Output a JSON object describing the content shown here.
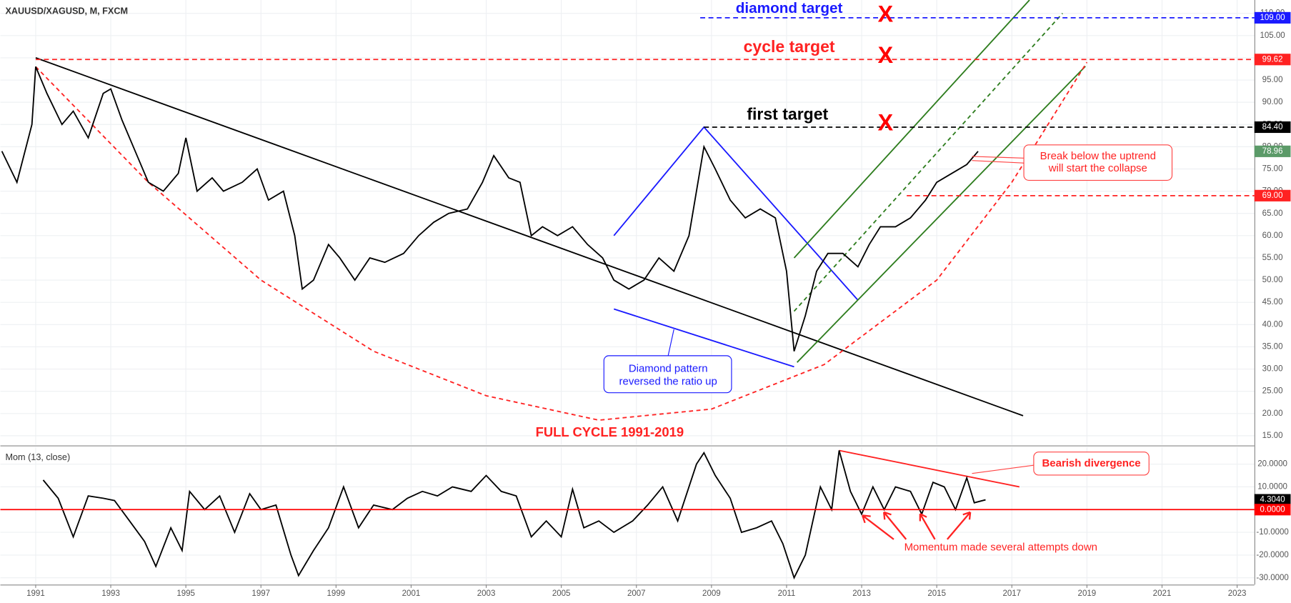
{
  "chart_data": [
    {
      "type": "line",
      "title": "XAUUSD/XAGUSD, M, FXCM",
      "color": "#000000",
      "x": [
        1990.1,
        1990.5,
        1990.9,
        1991.0,
        1991.3,
        1991.7,
        1992.0,
        1992.4,
        1992.8,
        1993.0,
        1993.3,
        1993.7,
        1994.0,
        1994.4,
        1994.8,
        1995.0,
        1995.3,
        1995.7,
        1996.0,
        1996.5,
        1996.9,
        1997.2,
        1997.6,
        1997.9,
        1998.1,
        1998.4,
        1998.8,
        1999.1,
        1999.5,
        1999.9,
        2000.3,
        2000.8,
        2001.2,
        2001.6,
        2002.0,
        2002.5,
        2002.9,
        2003.2,
        2003.6,
        2003.9,
        2004.2,
        2004.5,
        2004.9,
        2005.3,
        2005.7,
        2006.1,
        2006.4,
        2006.8,
        2007.2,
        2007.6,
        2008.0,
        2008.4,
        2008.8,
        2009.1,
        2009.5,
        2009.9,
        2010.3,
        2010.7,
        2011.0,
        2011.2,
        2011.5,
        2011.8,
        2012.1,
        2012.5,
        2012.9,
        2013.2,
        2013.5,
        2013.9,
        2014.3,
        2014.7,
        2015.0,
        2015.4,
        2015.8,
        2016.1
      ],
      "values": [
        79,
        72,
        85,
        98,
        92,
        85,
        88,
        82,
        92,
        93,
        86,
        78,
        72,
        70,
        74,
        82,
        70,
        73,
        70,
        72,
        75,
        68,
        70,
        60,
        48,
        50,
        58,
        55,
        50,
        55,
        54,
        56,
        60,
        63,
        65,
        66,
        72,
        78,
        73,
        72,
        60,
        62,
        60,
        62,
        58,
        55,
        50,
        48,
        50,
        55,
        52,
        60,
        80,
        75,
        68,
        64,
        66,
        64,
        52,
        34,
        42,
        52,
        56,
        56,
        53,
        58,
        62,
        62,
        64,
        68,
        72,
        74,
        76,
        78.96
      ],
      "xlim": [
        1990.06,
        2023.46
      ],
      "ylim": [
        13,
        113
      ],
      "yticks": [
        {
          "value": 15,
          "label": "15.00"
        },
        {
          "value": 20,
          "label": "20.00"
        },
        {
          "value": 25,
          "label": "25.00"
        },
        {
          "value": 30,
          "label": "30.00"
        },
        {
          "value": 35,
          "label": "35.00"
        },
        {
          "value": 40,
          "label": "40.00"
        },
        {
          "value": 45,
          "label": "45.00"
        },
        {
          "value": 50,
          "label": "50.00"
        },
        {
          "value": 55,
          "label": "55.00"
        },
        {
          "value": 60,
          "label": "60.00"
        },
        {
          "value": 65,
          "label": "65.00"
        },
        {
          "value": 70,
          "label": "70.00"
        },
        {
          "value": 75,
          "label": "75.00"
        },
        {
          "value": 80,
          "label": "80.00"
        },
        {
          "value": 85,
          "label": "85.00"
        },
        {
          "value": 90,
          "label": "90.00"
        },
        {
          "value": 95,
          "label": "95.00"
        },
        {
          "value": 100,
          "label": "100.00"
        },
        {
          "value": 105,
          "label": "105.00"
        },
        {
          "value": 110,
          "label": "110.00"
        }
      ],
      "grid": true,
      "levels": [
        {
          "value": 109,
          "label": "109.00",
          "color": "#1a1aff",
          "from": 2008.7,
          "line": true
        },
        {
          "value": 99.62,
          "label": "99.62",
          "color": "#ff2222",
          "from": 1991.0,
          "line": true
        },
        {
          "value": 84.4,
          "label": "84.40",
          "color": "#000000",
          "from": 2008.8,
          "line": true
        },
        {
          "value": 78.96,
          "label": "78.96",
          "color": "#5b9a68",
          "from": 2016.1,
          "line": false
        },
        {
          "value": 69,
          "label": "69.00",
          "color": "#ff2222",
          "from": 2014.2,
          "line": true
        }
      ],
      "trendlines": [
        {
          "x": [
            1991.0,
            2017.3
          ],
          "y": [
            100,
            19.5
          ],
          "color": "#000000",
          "dash": false
        },
        {
          "x": [
            2006.4,
            2008.8,
            2012.9
          ],
          "y": [
            60,
            84.4,
            45.5
          ],
          "color": "#1a1aff",
          "dash": false
        },
        {
          "x": [
            2006.4,
            2011.2
          ],
          "y": [
            43.5,
            30.5
          ],
          "color": "#1a1aff",
          "dash": false
        },
        {
          "x": [
            2011.28,
            2018.96
          ],
          "y": [
            31.5,
            98.1
          ],
          "color": "#2e7d1e",
          "dash": false
        },
        {
          "x": [
            2011.2,
            2017.47
          ],
          "y": [
            55,
            113
          ],
          "color": "#2e7d1e",
          "dash": false
        },
        {
          "x": [
            2011.2,
            2018.35
          ],
          "y": [
            43,
            110
          ],
          "color": "#2e7d1e",
          "dash": true
        },
        {
          "x": [
            1991.0,
            1994.0,
            1997.0,
            2000.0,
            2003.0,
            2006.0,
            2009.0,
            2012.0,
            2015.0,
            2017.0,
            2019.0
          ],
          "y": [
            98,
            72,
            50,
            34,
            24,
            18.5,
            21,
            31,
            50,
            72,
            99
          ],
          "color": "#ff2222",
          "dash": true
        }
      ],
      "annotations": [
        "diamond target",
        "cycle target",
        "first target",
        "FULL CYCLE 1991-2019",
        "Diamond pattern",
        "reversed the ratio up",
        "Break below the uptrend",
        "will start the collapse"
      ]
    },
    {
      "type": "line",
      "title": "Mom (13, close)",
      "color": "#000000",
      "x": [
        1991.2,
        1991.6,
        1992.0,
        1992.4,
        1992.8,
        1993.1,
        1993.5,
        1993.9,
        1994.2,
        1994.6,
        1994.9,
        1995.1,
        1995.5,
        1995.9,
        1996.3,
        1996.7,
        1997.0,
        1997.4,
        1997.8,
        1998.0,
        1998.4,
        1998.8,
        1999.2,
        1999.6,
        2000.0,
        2000.5,
        2000.9,
        2001.3,
        2001.7,
        2002.1,
        2002.6,
        2003.0,
        2003.4,
        2003.8,
        2004.2,
        2004.6,
        2005.0,
        2005.3,
        2005.6,
        2006.0,
        2006.4,
        2006.9,
        2007.3,
        2007.7,
        2008.1,
        2008.6,
        2008.8,
        2009.1,
        2009.5,
        2009.8,
        2010.2,
        2010.6,
        2010.9,
        2011.2,
        2011.5,
        2011.9,
        2012.2,
        2012.4,
        2012.7,
        2013.0,
        2013.3,
        2013.6,
        2013.9,
        2014.3,
        2014.6,
        2014.9,
        2015.2,
        2015.5,
        2015.8,
        2016.0,
        2016.3
      ],
      "values": [
        13,
        5,
        -12,
        6,
        5,
        4,
        -5,
        -14,
        -25,
        -8,
        -18,
        8,
        0,
        6,
        -10,
        7,
        0,
        2,
        -20,
        -29,
        -18,
        -8,
        10,
        -8,
        2,
        0,
        5,
        8,
        6,
        10,
        8,
        15,
        8,
        6,
        -12,
        -5,
        -12,
        9,
        -8,
        -5,
        -10,
        -5,
        2,
        10,
        -5,
        20,
        25,
        15,
        5,
        -10,
        -8,
        -5,
        -15,
        -30,
        -20,
        10,
        0,
        26,
        8,
        -2,
        10,
        0,
        10,
        8,
        -2,
        12,
        10,
        0,
        14,
        3,
        4.3
      ],
      "xlim": [
        1990.06,
        2023.46
      ],
      "ylim": [
        -33,
        27.5
      ],
      "yticks": [
        {
          "value": -30,
          "label": "-30.0000"
        },
        {
          "value": -20,
          "label": "-20.0000"
        },
        {
          "value": -10,
          "label": "-10.0000"
        },
        {
          "value": 10,
          "label": "10.0000"
        },
        {
          "value": 20,
          "label": "20.0000"
        }
      ],
      "xticks": [
        1991,
        1993,
        1995,
        1997,
        1999,
        2001,
        2003,
        2005,
        2007,
        2009,
        2011,
        2013,
        2015,
        2017,
        2019,
        2021,
        2023
      ],
      "grid": true,
      "levels": [
        {
          "value": 4.304,
          "label": "4.3040",
          "color": "#000000",
          "from": 2016.3,
          "line": false
        },
        {
          "value": 0,
          "label": "0.0000",
          "color": "#ff0000",
          "from": 1990.06,
          "line": true
        }
      ],
      "trendlines": [
        {
          "x": [
            2012.4,
            2017.2
          ],
          "y": [
            26,
            10
          ],
          "color": "#ff2222",
          "dash": false
        }
      ],
      "annotations": [
        "Bearish divergence",
        "Momentum made several attempts down"
      ]
    }
  ]
}
